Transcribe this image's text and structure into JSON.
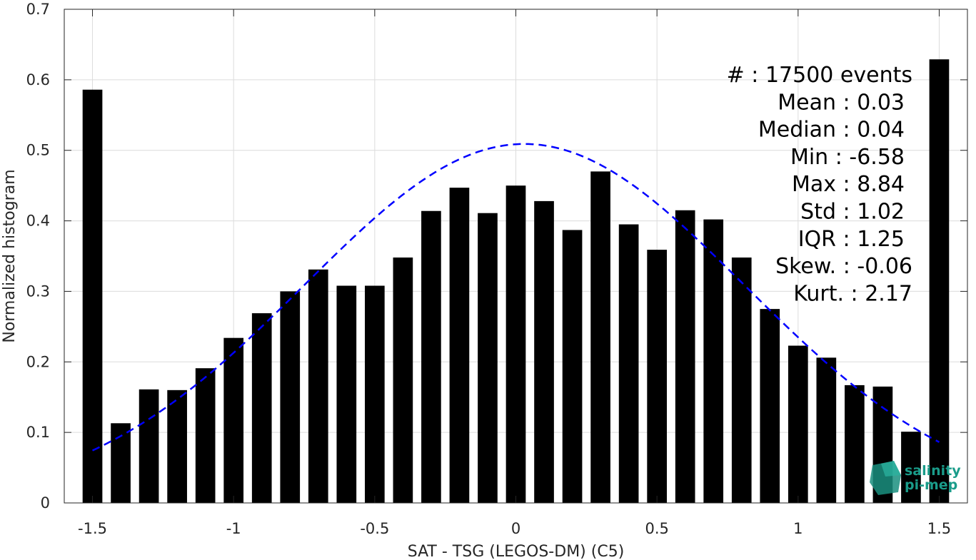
{
  "chart_data": {
    "type": "bar",
    "xlabel": "SAT - TSG (LEGOS-DM) (C5)",
    "ylabel": "Normalized histogram",
    "xlim": [
      -1.6,
      1.6
    ],
    "ylim": [
      0,
      0.7
    ],
    "grid": true,
    "xticks": [
      -1.5,
      -1,
      -0.5,
      0,
      0.5,
      1,
      1.5
    ],
    "xtick_labels": [
      "-1.5",
      "-1",
      "-0.5",
      "0",
      "0.5",
      "1",
      "1.5"
    ],
    "yticks": [
      0,
      0.1,
      0.2,
      0.3,
      0.4,
      0.5,
      0.6,
      0.7
    ],
    "ytick_labels": [
      "0",
      "0.1",
      "0.2",
      "0.3",
      "0.4",
      "0.5",
      "0.6",
      "0.7"
    ],
    "bar_width": 0.07,
    "bars": {
      "x": [
        -1.5,
        -1.4,
        -1.3,
        -1.2,
        -1.1,
        -1.0,
        -0.9,
        -0.8,
        -0.7,
        -0.6,
        -0.5,
        -0.4,
        -0.3,
        -0.2,
        -0.1,
        0.0,
        0.1,
        0.2,
        0.3,
        0.4,
        0.5,
        0.6,
        0.7,
        0.8,
        0.9,
        1.0,
        1.1,
        1.2,
        1.3,
        1.4,
        1.5
      ],
      "values": [
        0.586,
        0.113,
        0.161,
        0.16,
        0.191,
        0.234,
        0.269,
        0.3,
        0.331,
        0.308,
        0.308,
        0.348,
        0.414,
        0.447,
        0.411,
        0.45,
        0.428,
        0.387,
        0.47,
        0.395,
        0.359,
        0.415,
        0.402,
        0.348,
        0.275,
        0.223,
        0.206,
        0.167,
        0.165,
        0.101,
        0.629
      ],
      "color": "#000000"
    },
    "fit_curve": {
      "style": "dashed",
      "color": "#0000ff",
      "mean": 0.03,
      "std": 0.78,
      "peak": 0.509,
      "x_range": [
        -1.5,
        1.5
      ]
    },
    "annotations": [
      "#  : 17500 events",
      "Mean : 0.03",
      "Median : 0.04",
      "Min : -6.58",
      "Max : 8.84",
      "Std : 1.02",
      "IQR : 1.25",
      "Skew. : -0.06",
      "Kurt. : 2.17"
    ]
  },
  "logo": {
    "line1": "salinity",
    "line2": "pi-mep",
    "color": "#1a9c8a"
  }
}
